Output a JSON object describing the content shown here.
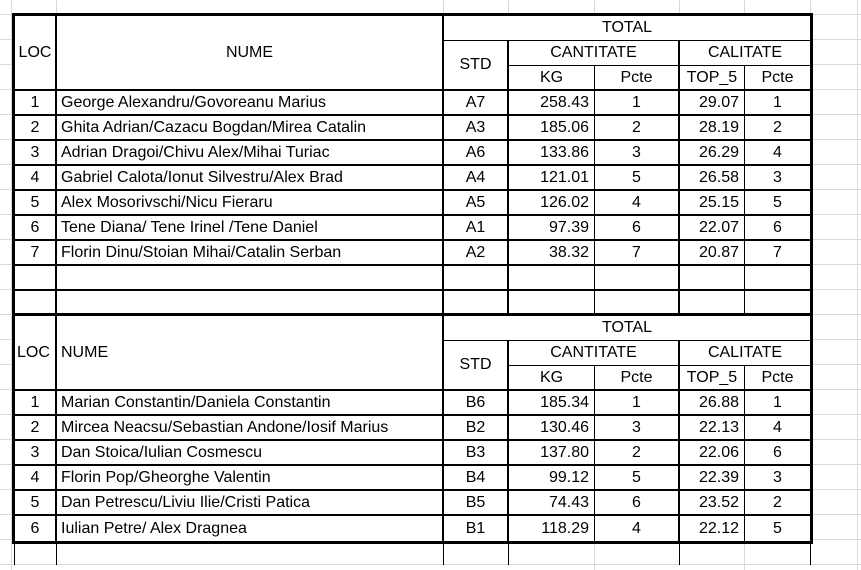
{
  "sheet": {
    "background": "#ffffff",
    "gridline_color": "#d9d9d9",
    "table_border_color": "#000000",
    "text_color": "#000000"
  },
  "tables": [
    {
      "header": {
        "loc": "LOC",
        "nume": "NUME",
        "std": "STD",
        "total": "TOTAL",
        "cantitate": "CANTITATE",
        "calitate": "CALITATE",
        "kg": "KG",
        "cantitate_pcte": "Pcte",
        "top5": "TOP_5",
        "calitate_pcte": "Pcte"
      },
      "rows": [
        {
          "loc": "1",
          "nume": "George Alexandru/Govoreanu Marius",
          "std": "A7",
          "kg": "258.43",
          "kg_pcte": "1",
          "top5": "29.07",
          "top5_pcte": "1"
        },
        {
          "loc": "2",
          "nume": "Ghita Adrian/Cazacu Bogdan/Mirea Catalin",
          "std": "A3",
          "kg": "185.06",
          "kg_pcte": "2",
          "top5": "28.19",
          "top5_pcte": "2"
        },
        {
          "loc": "3",
          "nume": "Adrian Dragoi/Chivu Alex/Mihai Turiac",
          "std": "A6",
          "kg": "133.86",
          "kg_pcte": "3",
          "top5": "26.29",
          "top5_pcte": "4"
        },
        {
          "loc": "4",
          "nume": "Gabriel Calota/Ionut Silvestru/Alex Brad",
          "std": "A4",
          "kg": "121.01",
          "kg_pcte": "5",
          "top5": "26.58",
          "top5_pcte": "3"
        },
        {
          "loc": "5",
          "nume": "Alex Mosorivschi/Nicu Fieraru",
          "std": "A5",
          "kg": "126.02",
          "kg_pcte": "4",
          "top5": "25.15",
          "top5_pcte": "5"
        },
        {
          "loc": "6",
          "nume": "Tene Diana/ Tene Irinel /Tene Daniel",
          "std": "A1",
          "kg": "97.39",
          "kg_pcte": "6",
          "top5": "22.07",
          "top5_pcte": "6"
        },
        {
          "loc": "7",
          "nume": "Florin Dinu/Stoian Mihai/Catalin Serban",
          "std": "A2",
          "kg": "38.32",
          "kg_pcte": "7",
          "top5": "20.87",
          "top5_pcte": "7"
        }
      ],
      "empty_rows": 2
    },
    {
      "header": {
        "loc": "LOC",
        "nume": "NUME",
        "std": "STD",
        "total": "TOTAL",
        "cantitate": "CANTITATE",
        "calitate": "CALITATE",
        "kg": "KG",
        "cantitate_pcte": "Pcte",
        "top5": "TOP_5",
        "calitate_pcte": "Pcte"
      },
      "rows": [
        {
          "loc": "1",
          "nume": "Marian Constantin/Daniela Constantin",
          "std": "B6",
          "kg": "185.34",
          "kg_pcte": "1",
          "top5": "26.88",
          "top5_pcte": "1"
        },
        {
          "loc": "2",
          "nume": "Mircea Neacsu/Sebastian Andone/Iosif Marius",
          "std": "B2",
          "kg": "130.46",
          "kg_pcte": "3",
          "top5": "22.13",
          "top5_pcte": "4"
        },
        {
          "loc": "3",
          "nume": "Dan Stoica/Iulian Cosmescu",
          "std": "B3",
          "kg": "137.80",
          "kg_pcte": "2",
          "top5": "22.06",
          "top5_pcte": "6"
        },
        {
          "loc": "4",
          "nume": "Florin Pop/Gheorghe Valentin",
          "std": "B4",
          "kg": "99.12",
          "kg_pcte": "5",
          "top5": "22.39",
          "top5_pcte": "3"
        },
        {
          "loc": "5",
          "nume": "Dan Petrescu/Liviu Ilie/Cristi Patica",
          "std": "B5",
          "kg": "74.43",
          "kg_pcte": "6",
          "top5": "23.52",
          "top5_pcte": "2"
        },
        {
          "loc": "6",
          "nume": "Iulian Petre/ Alex Dragnea",
          "std": "B1",
          "kg": "118.29",
          "kg_pcte": "4",
          "top5": "22.12",
          "top5_pcte": "5"
        }
      ],
      "empty_rows": 0
    }
  ]
}
